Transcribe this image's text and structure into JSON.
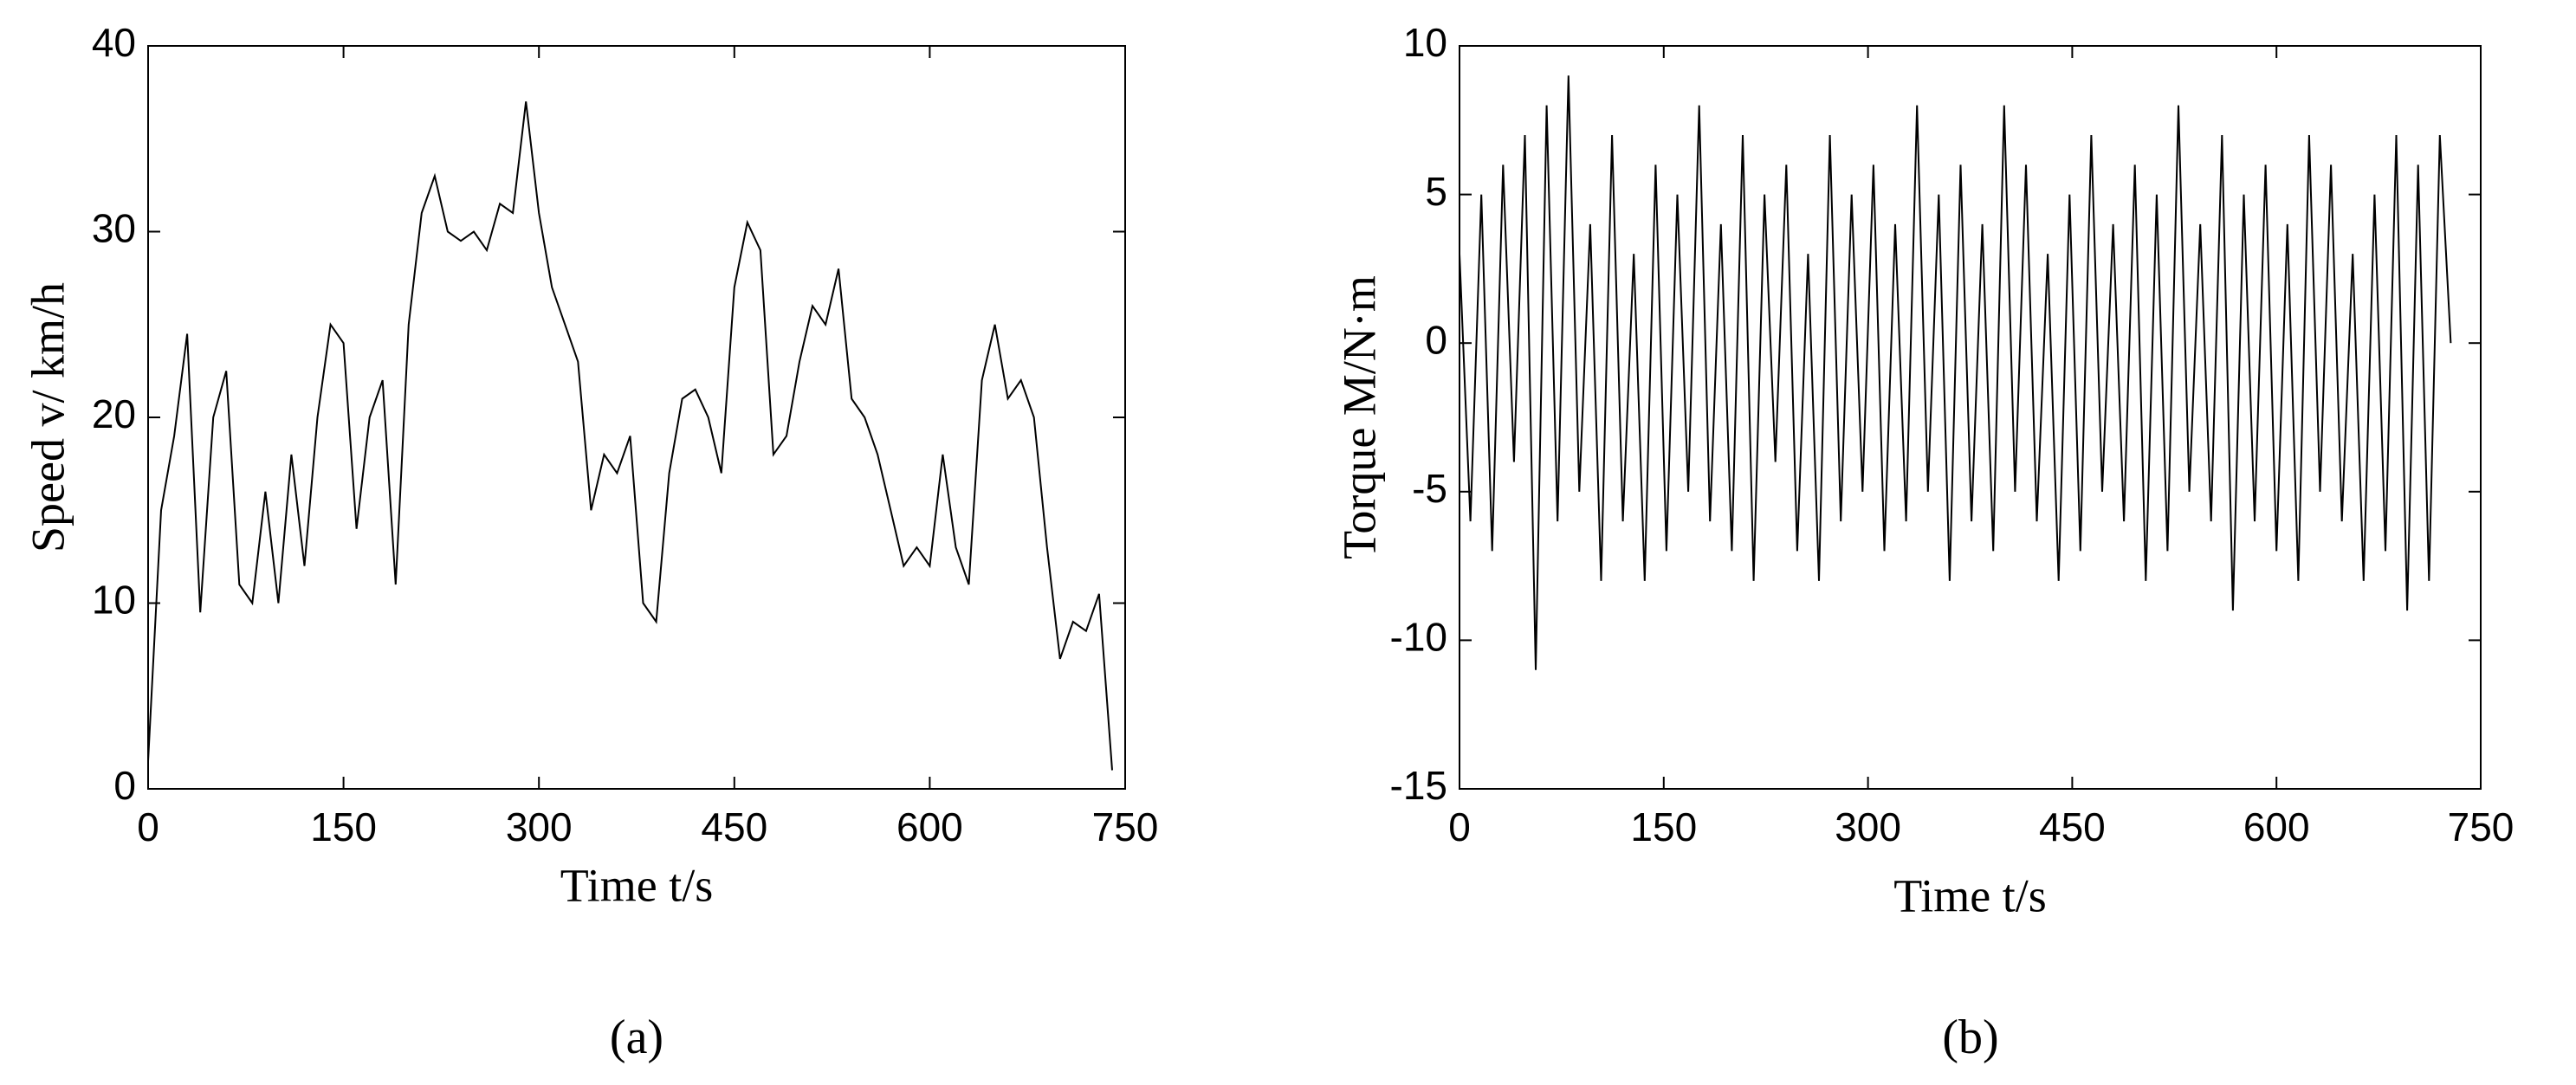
{
  "chart_data": [
    {
      "type": "line",
      "caption": "(a)",
      "xlabel": "Time  t/s",
      "ylabel": "Speed v/ km/h",
      "xlim": [
        0,
        750
      ],
      "xticks": [
        0,
        150,
        300,
        450,
        600,
        750
      ],
      "ylim": [
        0,
        40
      ],
      "yticks": [
        0,
        10,
        20,
        30,
        40
      ],
      "series": [
        {
          "color": "#000000",
          "x": [
            0,
            10,
            20,
            30,
            40,
            50,
            60,
            70,
            80,
            90,
            100,
            110,
            120,
            130,
            140,
            150,
            160,
            170,
            180,
            190,
            200,
            210,
            220,
            230,
            240,
            250,
            260,
            270,
            280,
            290,
            300,
            310,
            320,
            330,
            340,
            350,
            360,
            370,
            380,
            390,
            400,
            410,
            420,
            430,
            440,
            450,
            460,
            470,
            480,
            490,
            500,
            510,
            520,
            530,
            540,
            550,
            560,
            570,
            580,
            590,
            600,
            610,
            620,
            630,
            640,
            650,
            660,
            670,
            680,
            690,
            700,
            710,
            720,
            730,
            740
          ],
          "values": [
            1.5,
            15,
            19,
            24.5,
            9.5,
            20,
            22.5,
            11,
            10,
            16,
            10,
            18,
            12,
            20,
            25,
            24,
            14,
            20,
            22,
            11,
            25,
            31,
            33,
            30,
            29.5,
            30,
            29,
            31.5,
            31,
            37,
            31,
            27,
            25,
            23,
            15,
            18,
            17,
            19,
            10,
            9,
            17,
            21,
            21.5,
            20,
            17,
            27,
            30.5,
            29,
            18,
            19,
            23,
            26,
            25,
            28,
            21,
            20,
            18,
            15,
            12,
            13,
            12,
            18,
            13,
            11,
            22,
            25,
            21,
            22,
            20,
            13,
            7,
            9,
            8.5,
            10.5,
            1
          ]
        }
      ]
    },
    {
      "type": "line",
      "caption": "(b)",
      "xlabel": "Time  t/s",
      "ylabel": "Torque  M/N·m",
      "xlim": [
        0,
        750
      ],
      "xticks": [
        0,
        150,
        300,
        450,
        600,
        750
      ],
      "ylim": [
        -15,
        10
      ],
      "yticks": [
        -15,
        -10,
        -5,
        0,
        5,
        10
      ],
      "series": [
        {
          "color": "#000000",
          "x": [
            0,
            8,
            16,
            24,
            32,
            40,
            48,
            56,
            64,
            72,
            80,
            88,
            96,
            104,
            112,
            120,
            128,
            136,
            144,
            152,
            160,
            168,
            176,
            184,
            192,
            200,
            208,
            216,
            224,
            232,
            240,
            248,
            256,
            264,
            272,
            280,
            288,
            296,
            304,
            312,
            320,
            328,
            336,
            344,
            352,
            360,
            368,
            376,
            384,
            392,
            400,
            408,
            416,
            424,
            432,
            440,
            448,
            456,
            464,
            472,
            480,
            488,
            496,
            504,
            512,
            520,
            528,
            536,
            544,
            552,
            560,
            568,
            576,
            584,
            592,
            600,
            608,
            616,
            624,
            632,
            640,
            648,
            656,
            664,
            672,
            680,
            688,
            696,
            704,
            712,
            720,
            728
          ],
          "values": [
            3,
            -6,
            5,
            -7,
            6,
            -4,
            7,
            -11,
            8,
            -6,
            9,
            -5,
            4,
            -8,
            7,
            -6,
            3,
            -8,
            6,
            -7,
            5,
            -5,
            8,
            -6,
            4,
            -7,
            7,
            -8,
            5,
            -4,
            6,
            -7,
            3,
            -8,
            7,
            -6,
            5,
            -5,
            6,
            -7,
            4,
            -6,
            8,
            -5,
            5,
            -8,
            6,
            -6,
            4,
            -7,
            8,
            -5,
            6,
            -6,
            3,
            -8,
            5,
            -7,
            7,
            -5,
            4,
            -6,
            6,
            -8,
            5,
            -7,
            8,
            -5,
            4,
            -6,
            7,
            -9,
            5,
            -6,
            6,
            -7,
            4,
            -8,
            7,
            -5,
            6,
            -6,
            3,
            -8,
            5,
            -7,
            7,
            -9,
            6,
            -8,
            7,
            0
          ]
        }
      ]
    }
  ]
}
